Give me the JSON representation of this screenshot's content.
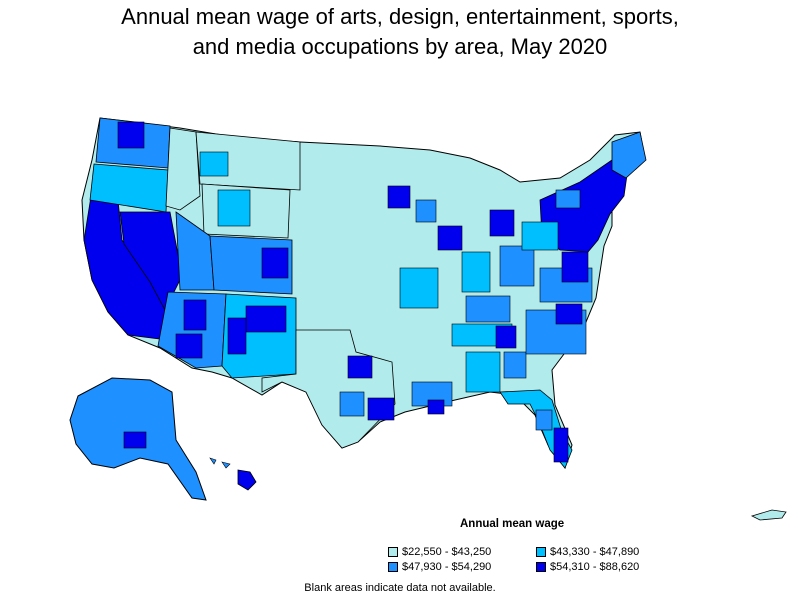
{
  "title_line1": "Annual mean wage of arts, design, entertainment, sports,",
  "title_line2": "and media occupations by area, May 2020",
  "legend": {
    "title": "Annual mean wage",
    "items": [
      {
        "label": "$22,550 - $43,250",
        "color": "#b2ebeb"
      },
      {
        "label": "$43,330 - $47,890",
        "color": "#00bfff"
      },
      {
        "label": "$47,930 - $54,290",
        "color": "#1e90ff"
      },
      {
        "label": "$54,310 - $88,620",
        "color": "#0000ee"
      }
    ]
  },
  "note": "Blank areas indicate data not available.",
  "colors": {
    "tier1": "#b2ebeb",
    "tier2": "#00bfff",
    "tier3": "#1e90ff",
    "tier4": "#0000ee",
    "border": "#000000"
  }
}
